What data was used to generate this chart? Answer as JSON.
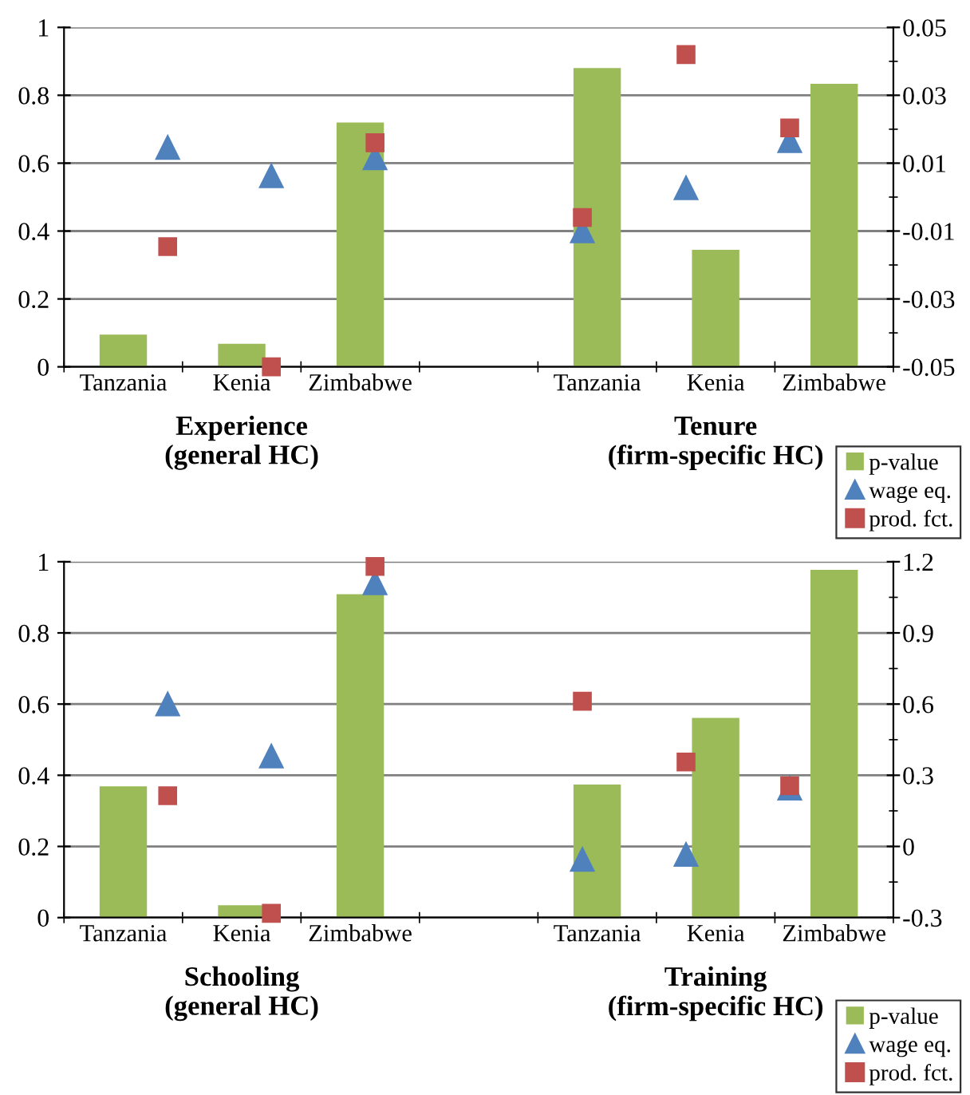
{
  "chart_data": [
    {
      "type": "bar",
      "categories": [
        "Tanzania",
        "Kenia",
        "Zimbabwe",
        null,
        "Tanzania",
        "Kenia",
        "Zimbabwe"
      ],
      "series": [
        {
          "name": "p-value",
          "color": "#9bbb59",
          "values": [
            0.095,
            0.068,
            0.72,
            null,
            0.88,
            0.345,
            0.834
          ]
        },
        {
          "name": "wage eq.",
          "type": "scatter",
          "axis": "y2",
          "marker": "triangle",
          "color": "#4f81bd",
          "values": [
            0.0146,
            0.0062,
            0.0115,
            null,
            -0.01,
            0.0027,
            0.0166
          ]
        },
        {
          "name": "prod. fct.",
          "type": "scatter",
          "axis": "y2",
          "marker": "square",
          "color": "#c0504d",
          "values": [
            -0.0146,
            -0.05,
            0.016,
            null,
            -0.006,
            0.042,
            0.0204
          ]
        }
      ],
      "ylim": [
        0,
        1
      ],
      "yticks": [
        0,
        0.2,
        0.4,
        0.6,
        0.8,
        1
      ],
      "y2lim": [
        -0.05,
        0.05
      ],
      "y2ticks": [
        -0.05,
        -0.03,
        -0.01,
        0.01,
        0.03,
        0.05
      ],
      "grid": "y",
      "legend": "bottom right",
      "annotations": [
        "Experience\n(general HC)",
        "Tenure\n(firm-specific HC)"
      ]
    },
    {
      "type": "bar",
      "categories": [
        "Tanzania",
        "Kenia",
        "Zimbabwe",
        null,
        "Tanzania",
        "Kenia",
        "Zimbabwe"
      ],
      "series": [
        {
          "name": "p-value",
          "color": "#9bbb59",
          "values": [
            0.369,
            0.035,
            0.909,
            null,
            0.374,
            0.561,
            0.977
          ]
        },
        {
          "name": "wage eq.",
          "type": "scatter",
          "axis": "y2",
          "marker": "triangle",
          "color": "#4f81bd",
          "values": [
            0.6,
            0.38,
            1.11,
            null,
            -0.055,
            -0.034,
            0.245
          ]
        },
        {
          "name": "prod. fct.",
          "type": "scatter",
          "axis": "y2",
          "marker": "square",
          "color": "#c0504d",
          "values": [
            0.214,
            -0.282,
            1.18,
            null,
            0.612,
            0.356,
            0.256
          ]
        }
      ],
      "ylim": [
        0,
        1
      ],
      "yticks": [
        0,
        0.2,
        0.4,
        0.6,
        0.8,
        1
      ],
      "y2lim": [
        -0.3,
        1.2
      ],
      "y2ticks": [
        -0.3,
        0,
        0.3,
        0.6,
        0.9,
        1.2
      ],
      "grid": "y",
      "legend": "bottom right",
      "annotations": [
        "Schooling\n(general HC)",
        "Training\n(firm-specific HC)"
      ]
    }
  ]
}
